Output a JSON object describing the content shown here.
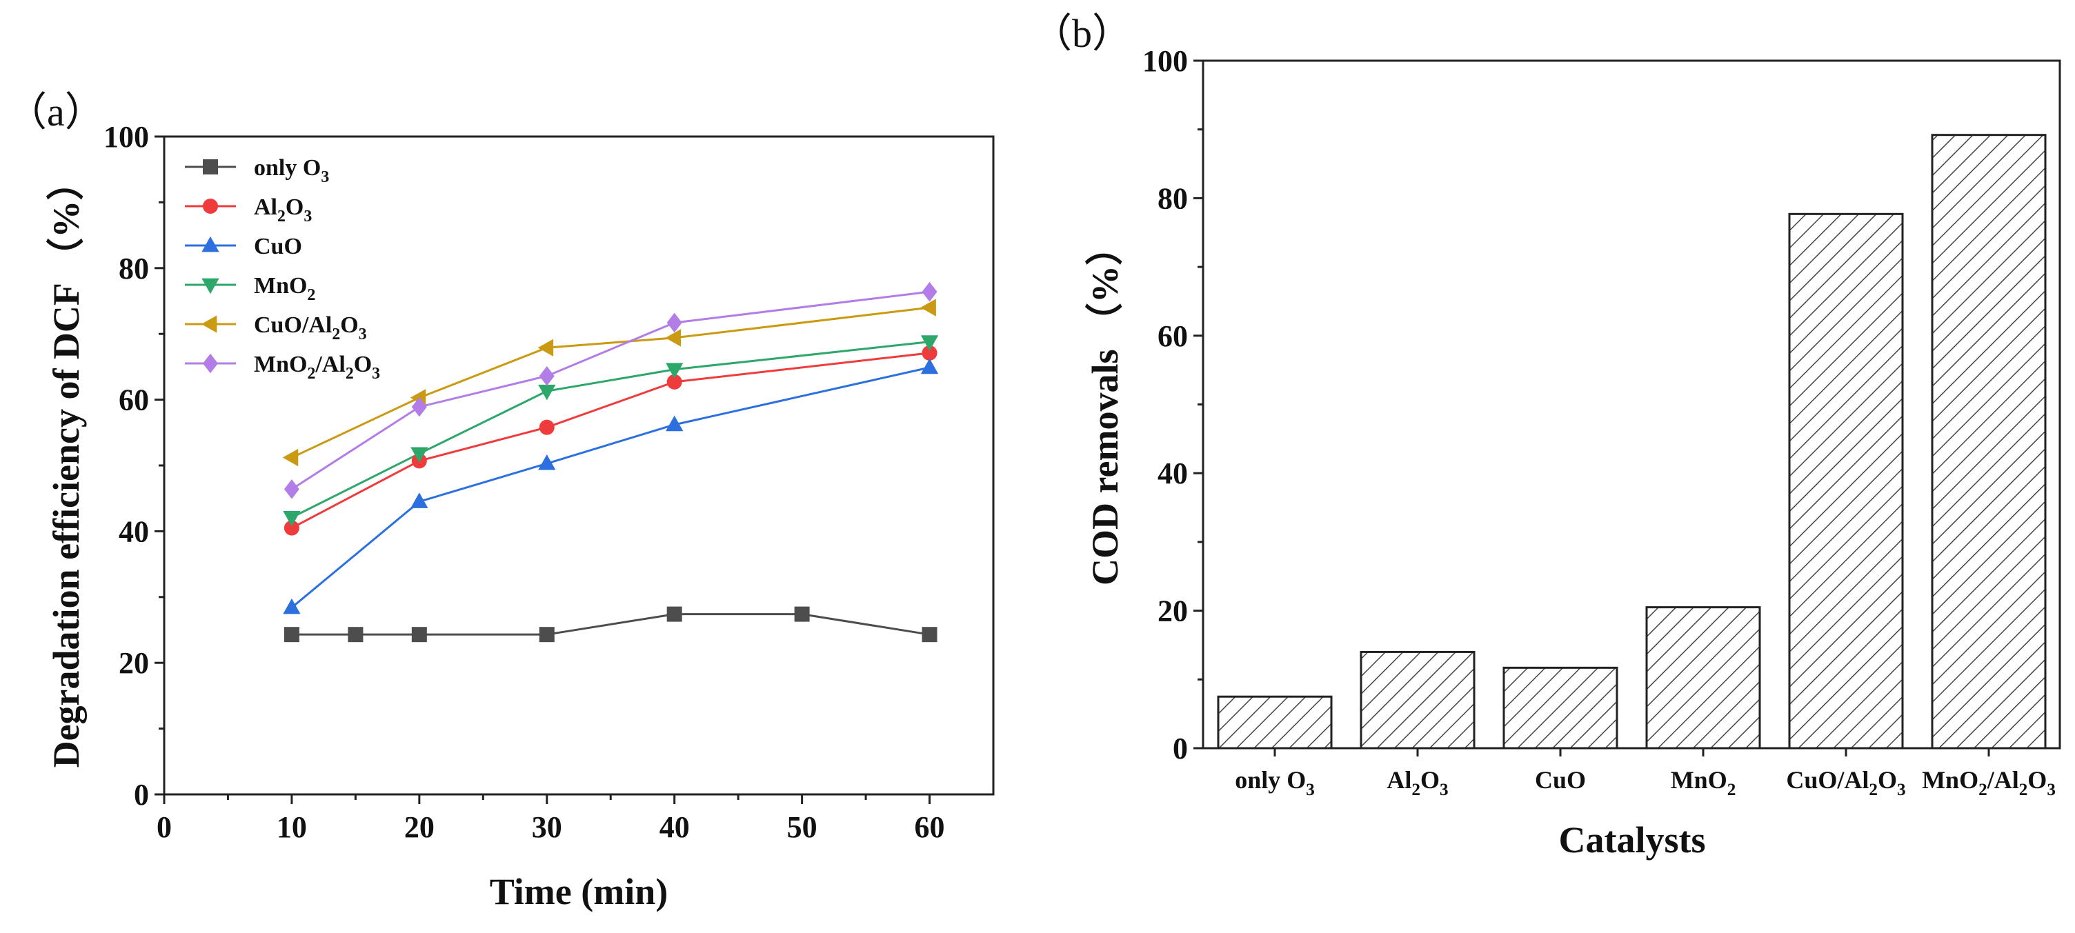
{
  "chart_data": [
    {
      "type": "line",
      "panel_label": "（a）",
      "xlabel": "Time (min)",
      "ylabel": "Degradation efficiency of DCF （%）",
      "xlim": [
        0,
        65
      ],
      "ylim": [
        0,
        100
      ],
      "xticks": [
        0,
        10,
        20,
        30,
        40,
        50,
        60
      ],
      "yticks": [
        0,
        20,
        40,
        60,
        80,
        100
      ],
      "legend_position": "top-left",
      "series": [
        {
          "name": "only O₃",
          "color": "#4d4d4d",
          "marker": "square",
          "x": [
            10,
            15,
            20,
            30,
            40,
            50,
            60
          ],
          "y": [
            24.3,
            24.3,
            24.3,
            24.3,
            27.4,
            27.4,
            24.3
          ]
        },
        {
          "name": "Al₂O₃",
          "color": "#ef3b3b",
          "marker": "circle",
          "x": [
            10,
            20,
            30,
            40,
            60
          ],
          "y": [
            40.5,
            50.7,
            55.8,
            62.7,
            67.1
          ]
        },
        {
          "name": "CuO",
          "color": "#2c70e0",
          "marker": "triangle-up",
          "x": [
            10,
            20,
            30,
            40,
            60
          ],
          "y": [
            28.4,
            44.5,
            50.3,
            56.2,
            64.9
          ]
        },
        {
          "name": "MnO₂",
          "color": "#2ea76a",
          "marker": "triangle-down",
          "x": [
            10,
            20,
            30,
            40,
            60
          ],
          "y": [
            42.1,
            51.8,
            61.3,
            64.6,
            68.8
          ]
        },
        {
          "name": "CuO/Al₂O₃",
          "color": "#c99a12",
          "marker": "triangle-left",
          "x": [
            10,
            20,
            30,
            40,
            60
          ],
          "y": [
            51.2,
            60.3,
            67.9,
            69.4,
            74.0
          ]
        },
        {
          "name": "MnO₂/Al₂O₃",
          "color": "#b27de6",
          "marker": "diamond",
          "x": [
            10,
            20,
            30,
            40,
            60
          ],
          "y": [
            46.4,
            58.9,
            63.6,
            71.7,
            76.4
          ]
        }
      ]
    },
    {
      "type": "bar",
      "panel_label": "（b）",
      "xlabel": "Catalysts",
      "ylabel": "COD removals （%）",
      "ylim": [
        0,
        100
      ],
      "yticks": [
        0,
        20,
        40,
        60,
        80,
        100
      ],
      "categories": [
        "only O₃",
        "Al₂O₃",
        "CuO",
        "MnO₂",
        "CuO/Al₂O₃",
        "MnO₂/Al₂O₃"
      ],
      "values": [
        7.5,
        14.0,
        11.7,
        20.5,
        77.7,
        89.2
      ],
      "bar_fill": "hatched"
    }
  ]
}
